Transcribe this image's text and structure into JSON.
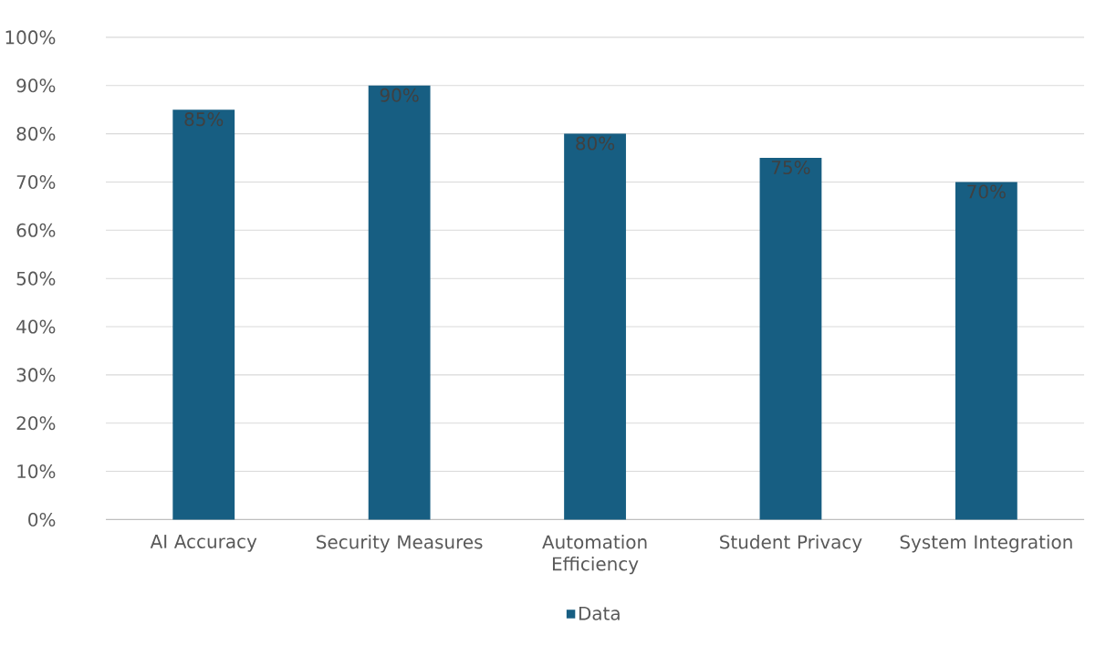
{
  "chart_data": {
    "type": "bar",
    "categories": [
      "AI Accuracy",
      "Security Measures",
      "Automation Efficiency",
      "Student Privacy",
      "System Integration"
    ],
    "series": [
      {
        "name": "Data",
        "color": "#175e82",
        "values": [
          85,
          90,
          80,
          75,
          70
        ],
        "value_labels": [
          "85%",
          "90%",
          "80%",
          "75%",
          "70%"
        ]
      }
    ],
    "ylim": [
      0,
      100
    ],
    "yticks": [
      {
        "value": 0,
        "label": "0%"
      },
      {
        "value": 10,
        "label": "10%"
      },
      {
        "value": 20,
        "label": "20%"
      },
      {
        "value": 30,
        "label": "30%"
      },
      {
        "value": 40,
        "label": "40%"
      },
      {
        "value": 50,
        "label": "50%"
      },
      {
        "value": 60,
        "label": "60%"
      },
      {
        "value": 70,
        "label": "70%"
      },
      {
        "value": 80,
        "label": "80%"
      },
      {
        "value": 90,
        "label": "90%"
      },
      {
        "value": 100,
        "label": "100%"
      }
    ],
    "grid": "y",
    "legend": "bottom"
  }
}
